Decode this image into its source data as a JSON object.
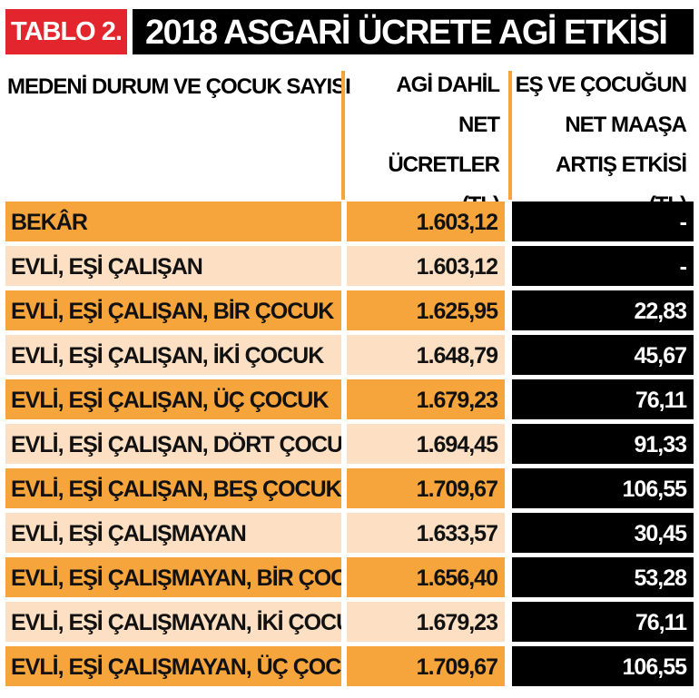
{
  "title": {
    "tag": "TABLO 2.",
    "text": "2018 ASGARİ ÜCRETE AGİ ETKİSİ"
  },
  "header": {
    "col1": "MEDENİ DURUM VE ÇOCUK SAYISI",
    "col2": [
      "AGİ DAHİL",
      "NET ÜCRETLER",
      "(TL)"
    ],
    "col3": [
      "EŞ VE ÇOCUĞUN",
      "NET MAAŞA",
      "ARTIŞ ETKİSİ (TL)"
    ]
  },
  "colors": {
    "orange": "#f6a53c",
    "light_orange": "#fde0c4",
    "red": "#e3262d",
    "black": "#000000"
  },
  "rows": [
    {
      "label": "BEKÂR",
      "net": "1.603,12",
      "effect": "-"
    },
    {
      "label": "EVLİ, EŞİ ÇALIŞAN",
      "net": "1.603,12",
      "effect": "-"
    },
    {
      "label": "EVLİ, EŞİ ÇALIŞAN, BİR ÇOCUK",
      "net": "1.625,95",
      "effect": "22,83"
    },
    {
      "label": "EVLİ, EŞİ ÇALIŞAN, İKİ ÇOCUK",
      "net": "1.648,79",
      "effect": "45,67"
    },
    {
      "label": "EVLİ, EŞİ ÇALIŞAN, ÜÇ ÇOCUK",
      "net": "1.679,23",
      "effect": "76,11"
    },
    {
      "label": "EVLİ, EŞİ ÇALIŞAN, DÖRT ÇOCUK",
      "net": "1.694,45",
      "effect": "91,33"
    },
    {
      "label": "EVLİ, EŞİ ÇALIŞAN, BEŞ ÇOCUK",
      "net": "1.709,67",
      "effect": "106,55"
    },
    {
      "label": "EVLİ, EŞİ ÇALIŞMAYAN",
      "net": "1.633,57",
      "effect": "30,45"
    },
    {
      "label": "EVLİ, EŞİ ÇALIŞMAYAN, BİR ÇOCUK",
      "net": "1.656,40",
      "effect": "53,28"
    },
    {
      "label": "EVLİ,  EŞİ ÇALIŞMAYAN, İKİ ÇOCUK",
      "net": "1.679,23",
      "effect": "76,11"
    },
    {
      "label": "EVLİ,  EŞİ ÇALIŞMAYAN, ÜÇ ÇOCUK",
      "net": "1.709,67",
      "effect": "106,55"
    }
  ]
}
